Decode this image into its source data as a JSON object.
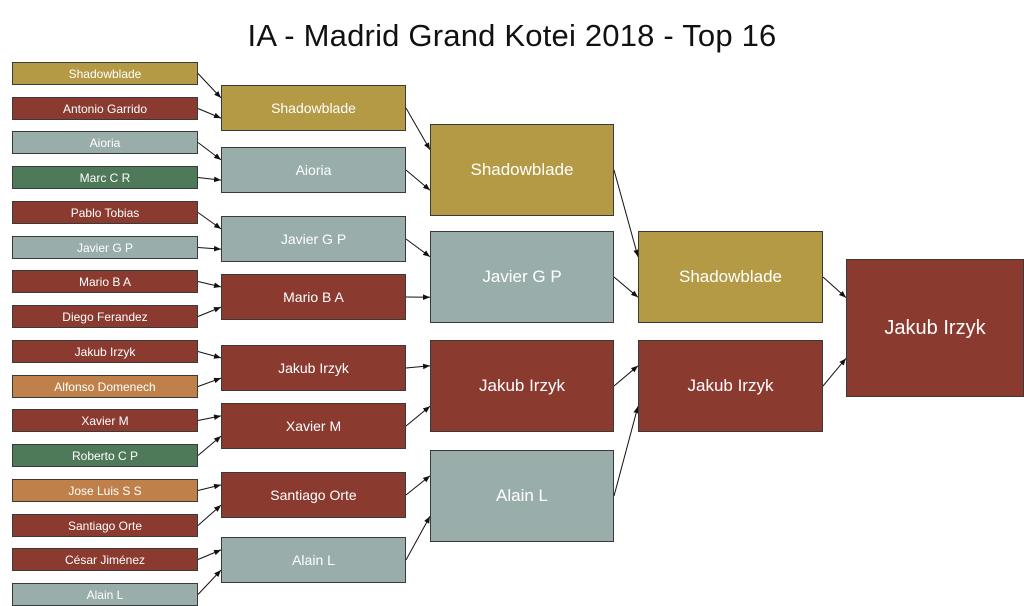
{
  "title": "IA - Madrid Grand Kotei 2018 - Top 16",
  "colors": {
    "gold": "#b59a45",
    "red": "#8b3a30",
    "grey": "#99aeab",
    "green": "#4f7a5a",
    "orange": "#c0804a"
  },
  "bracket": {
    "round1": [
      {
        "name": "Shadowblade",
        "color": "gold"
      },
      {
        "name": "Antonio Garrido",
        "color": "red"
      },
      {
        "name": "Aioria",
        "color": "grey"
      },
      {
        "name": "Marc C R",
        "color": "green"
      },
      {
        "name": "Pablo Tobias",
        "color": "red"
      },
      {
        "name": "Javier G P",
        "color": "grey"
      },
      {
        "name": "Mario B A",
        "color": "red"
      },
      {
        "name": "Diego Ferandez",
        "color": "red"
      },
      {
        "name": "Jakub Irzyk",
        "color": "red"
      },
      {
        "name": "Alfonso Domenech",
        "color": "orange"
      },
      {
        "name": "Xavier M",
        "color": "red"
      },
      {
        "name": "Roberto C P",
        "color": "green"
      },
      {
        "name": "Jose Luis S S",
        "color": "orange"
      },
      {
        "name": "Santiago Orte",
        "color": "red"
      },
      {
        "name": "César Jiménez",
        "color": "red"
      },
      {
        "name": "Alain L",
        "color": "grey"
      }
    ],
    "round2": [
      {
        "name": "Shadowblade",
        "color": "gold"
      },
      {
        "name": "Aioria",
        "color": "grey"
      },
      {
        "name": "Javier G P",
        "color": "grey"
      },
      {
        "name": "Mario B A",
        "color": "red"
      },
      {
        "name": "Jakub Irzyk",
        "color": "red"
      },
      {
        "name": "Xavier M",
        "color": "red"
      },
      {
        "name": "Santiago Orte",
        "color": "red"
      },
      {
        "name": "Alain L",
        "color": "grey"
      }
    ],
    "round3": [
      {
        "name": "Shadowblade",
        "color": "gold"
      },
      {
        "name": "Javier G P",
        "color": "grey"
      },
      {
        "name": "Jakub Irzyk",
        "color": "red"
      },
      {
        "name": "Alain L",
        "color": "grey"
      }
    ],
    "round4": [
      {
        "name": "Shadowblade",
        "color": "gold"
      },
      {
        "name": "Jakub Irzyk",
        "color": "red"
      }
    ],
    "round5": [
      {
        "name": "Jakub Irzyk",
        "color": "red"
      }
    ]
  }
}
